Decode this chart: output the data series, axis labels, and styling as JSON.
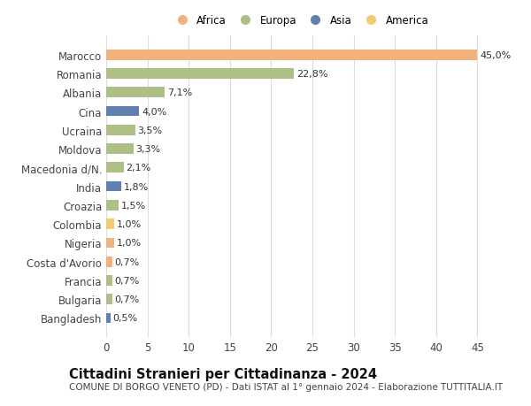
{
  "countries": [
    "Marocco",
    "Romania",
    "Albania",
    "Cina",
    "Ucraina",
    "Moldova",
    "Macedonia d/N.",
    "India",
    "Croazia",
    "Colombia",
    "Nigeria",
    "Costa d'Avorio",
    "Francia",
    "Bulgaria",
    "Bangladesh"
  ],
  "values": [
    45.0,
    22.8,
    7.1,
    4.0,
    3.5,
    3.3,
    2.1,
    1.8,
    1.5,
    1.0,
    1.0,
    0.7,
    0.7,
    0.7,
    0.5
  ],
  "labels": [
    "45,0%",
    "22,8%",
    "7,1%",
    "4,0%",
    "3,5%",
    "3,3%",
    "2,1%",
    "1,8%",
    "1,5%",
    "1,0%",
    "1,0%",
    "0,7%",
    "0,7%",
    "0,7%",
    "0,5%"
  ],
  "continents": [
    "Africa",
    "Europa",
    "Europa",
    "Asia",
    "Europa",
    "Europa",
    "Europa",
    "Asia",
    "Europa",
    "America",
    "Africa",
    "Africa",
    "Europa",
    "Europa",
    "Asia"
  ],
  "continent_colors": {
    "Africa": "#F2B27E",
    "Europa": "#ADBF85",
    "Asia": "#6080B0",
    "America": "#F2CC6E"
  },
  "legend_order": [
    "Africa",
    "Europa",
    "Asia",
    "America"
  ],
  "title": "Cittadini Stranieri per Cittadinanza - 2024",
  "subtitle": "COMUNE DI BORGO VENETO (PD) - Dati ISTAT al 1° gennaio 2024 - Elaborazione TUTTITALIA.IT",
  "xlim": [
    0,
    47
  ],
  "xticks": [
    0,
    5,
    10,
    15,
    20,
    25,
    30,
    35,
    40,
    45
  ],
  "bg_color": "#FFFFFF",
  "grid_color": "#DDDDDD",
  "bar_height": 0.55,
  "title_fontsize": 10.5,
  "subtitle_fontsize": 7.5,
  "tick_fontsize": 8.5,
  "label_fontsize": 8.0,
  "legend_fontsize": 8.5
}
